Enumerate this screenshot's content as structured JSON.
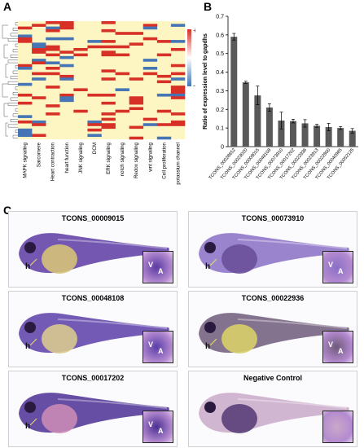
{
  "panels": {
    "a": "A",
    "b": "B",
    "c": "C"
  },
  "heatmap": {
    "legend": {
      "top": "+",
      "bottom": "-"
    },
    "columns": [
      "MAPK signaling",
      "Sarcomere",
      "Heart contraction",
      "heart function",
      "JNK signaling",
      "DCM",
      "ERK signaling",
      "notch signaling",
      "Redox signaling",
      "wnt signaling",
      "Cell proliferation",
      "potassium channel"
    ],
    "colors": {
      "high": "#d73027",
      "low": "#4575b4",
      "neutral": "#fdf5c2"
    }
  },
  "chart_data": {
    "type": "bar",
    "ylabel": "Ratio of expression level to gapdhs",
    "ylim": [
      0,
      0.7
    ],
    "yticks": [
      "0",
      "0.1",
      "0.2",
      "0.3",
      "0.4",
      "0.5",
      "0.6",
      "0.7"
    ],
    "categories": [
      "TCONS_00028652",
      "TCONS_00023020",
      "TCONS_00009015",
      "TCONS_00048108",
      "TCONS_00073910",
      "TCONS_00017202",
      "TCONS_00022936",
      "TCONS_00023913",
      "TCONS_00022800",
      "TCONS_00040985",
      "TCONS_00052125"
    ],
    "values": [
      0.59,
      0.345,
      0.275,
      0.21,
      0.14,
      0.137,
      0.125,
      0.112,
      0.105,
      0.1,
      0.085
    ],
    "errors": [
      0.018,
      0.006,
      0.05,
      0.02,
      0.045,
      0.01,
      0.02,
      0.008,
      0.02,
      0.008,
      0.012
    ],
    "grid": false,
    "bar_color": "#595959"
  },
  "embryos": [
    {
      "title": "TCONS_00009015",
      "h": "h",
      "v": "V",
      "a": "A",
      "stain": "#5b3aa3",
      "yolk": "#d6c27a"
    },
    {
      "title": "TCONS_00073910",
      "h": "h",
      "v": "V",
      "a": "A",
      "stain": "#8a6fc6",
      "yolk": "#6a4f9a"
    },
    {
      "title": "TCONS_00048108",
      "h": "h",
      "v": "V",
      "a": "A",
      "stain": "#5a3ea8",
      "yolk": "#d9c98f"
    },
    {
      "title": "TCONS_00022936",
      "h": "h",
      "v": "V",
      "a": "A",
      "stain": "#6f5a7a",
      "yolk": "#d8cf6a"
    },
    {
      "title": "TCONS_00017202",
      "h": "h",
      "v": "V",
      "a": "A",
      "stain": "#4b2f94",
      "yolk": "#c98ab6"
    },
    {
      "title": "Negative Control",
      "h": "",
      "v": "",
      "a": "",
      "stain": "#c9a9c9",
      "yolk": "#5a3f7a"
    }
  ]
}
